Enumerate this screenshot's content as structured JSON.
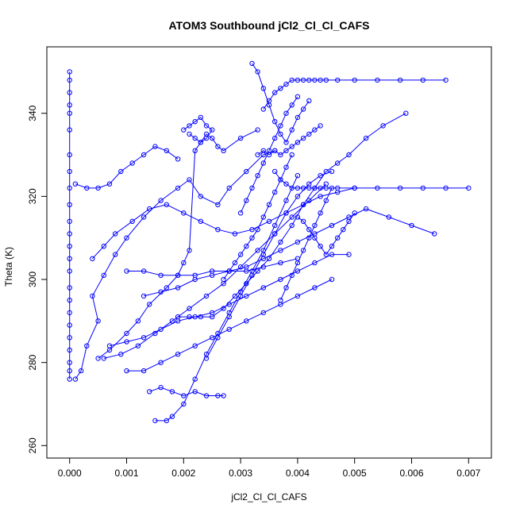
{
  "chart_data": {
    "type": "scatter",
    "title": "ATOM3 Southbound jCl2_Cl_Cl_CAFS",
    "xlabel": "jCl2_Cl_Cl_CAFS",
    "ylabel": "Theta (K)",
    "xlim": [
      -0.0004,
      0.0074
    ],
    "ylim": [
      257,
      356
    ],
    "x_ticks": [
      {
        "value": 0.0,
        "label": "0.000"
      },
      {
        "value": 0.001,
        "label": "0.001"
      },
      {
        "value": 0.002,
        "label": "0.002"
      },
      {
        "value": 0.003,
        "label": "0.003"
      },
      {
        "value": 0.004,
        "label": "0.004"
      },
      {
        "value": 0.005,
        "label": "0.005"
      },
      {
        "value": 0.006,
        "label": "0.006"
      },
      {
        "value": 0.007,
        "label": "0.007"
      }
    ],
    "y_ticks": [
      {
        "value": 260,
        "label": "260"
      },
      {
        "value": 280,
        "label": "280"
      },
      {
        "value": 300,
        "label": "300"
      },
      {
        "value": 320,
        "label": "320"
      },
      {
        "value": 340,
        "label": "340"
      }
    ],
    "grid": false,
    "series_color": "#0000ff",
    "marker": "open-circle",
    "connected": true,
    "series": [
      {
        "x": [
          0.0,
          0.0,
          0.0,
          0.0,
          0.0,
          0.0,
          0.0,
          0.0,
          0.0,
          0.0,
          0.0,
          0.0,
          0.0,
          0.0,
          0.0,
          0.0,
          0.0,
          0.0,
          0.0,
          0.0,
          0.0,
          0.0,
          0.0,
          0.0
        ],
        "y": [
          350,
          348,
          345,
          342,
          340,
          336,
          330,
          326,
          322,
          318,
          314,
          311,
          308,
          305,
          302,
          298,
          295,
          292,
          289,
          286,
          283,
          280,
          278,
          276
        ]
      },
      {
        "x": [
          0.0001,
          0.0002,
          0.0003,
          0.0005,
          0.0004,
          0.0006,
          0.0008,
          0.001,
          0.0013,
          0.0016,
          0.0019,
          0.0021,
          0.0023,
          0.0026,
          0.0028,
          0.0031,
          0.0034,
          0.0036
        ],
        "y": [
          276,
          278,
          284,
          290,
          296,
          301,
          306,
          310,
          315,
          319,
          322,
          324,
          320,
          318,
          322,
          326,
          330,
          331
        ]
      },
      {
        "x": [
          0.0005,
          0.0007,
          0.001,
          0.0012,
          0.0014,
          0.0017,
          0.0019,
          0.002,
          0.0021,
          0.0022,
          0.0023,
          0.0024,
          0.0025,
          0.0026,
          0.0027,
          0.003,
          0.0033
        ],
        "y": [
          281,
          283,
          287,
          290,
          294,
          298,
          301,
          304,
          307,
          331,
          333,
          335,
          334,
          332,
          331,
          334,
          336
        ]
      },
      {
        "x": [
          0.002,
          0.0021,
          0.0022,
          0.0023,
          0.0024,
          0.0025,
          0.0024,
          0.0023,
          0.0022,
          0.0021
        ],
        "y": [
          336,
          337,
          338,
          339,
          337,
          336,
          334,
          333,
          334,
          335
        ]
      },
      {
        "x": [
          0.0034,
          0.0035,
          0.0036,
          0.0037,
          0.0038,
          0.0039,
          0.004,
          0.0041,
          0.0042,
          0.0043,
          0.0044,
          0.0045,
          0.0047,
          0.005,
          0.0054,
          0.0058,
          0.0062,
          0.0066
        ],
        "y": [
          341,
          343,
          345,
          346,
          347,
          348,
          348,
          348,
          348,
          348,
          348,
          348,
          348,
          348,
          348,
          348,
          348,
          348
        ]
      },
      {
        "x": [
          0.0036,
          0.0037,
          0.0038,
          0.0039,
          0.004,
          0.0041,
          0.0042,
          0.0043,
          0.0044,
          0.0045,
          0.0047,
          0.005,
          0.0054,
          0.0058,
          0.0062,
          0.0066,
          0.007
        ],
        "y": [
          326,
          324,
          323,
          322,
          322,
          322,
          322,
          322,
          322,
          322,
          322,
          322,
          322,
          322,
          322,
          322,
          322
        ]
      },
      {
        "x": [
          0.0032,
          0.0033,
          0.0034,
          0.0035,
          0.0036,
          0.0037,
          0.0038,
          0.0039,
          0.004,
          0.0041,
          0.0042
        ],
        "y": [
          352,
          350,
          346,
          342,
          338,
          335,
          333,
          336,
          339,
          341,
          343
        ]
      },
      {
        "x": [
          0.0015,
          0.0017,
          0.0018,
          0.002,
          0.0022,
          0.0024,
          0.0026,
          0.0028,
          0.003,
          0.0032,
          0.0034,
          0.0036,
          0.0038,
          0.004
        ],
        "y": [
          266,
          266,
          267,
          270,
          276,
          282,
          287,
          292,
          297,
          302,
          307,
          313,
          319,
          325
        ]
      },
      {
        "x": [
          0.0014,
          0.0016,
          0.0018,
          0.002,
          0.0022,
          0.0024,
          0.0026,
          0.0027
        ],
        "y": [
          273,
          274,
          273,
          272,
          273,
          272,
          272,
          272
        ]
      },
      {
        "x": [
          0.001,
          0.0013,
          0.0016,
          0.0019,
          0.0022,
          0.0025,
          0.0028,
          0.0031,
          0.0034,
          0.0037,
          0.004,
          0.0043,
          0.0046
        ],
        "y": [
          278,
          278,
          280,
          282,
          284,
          286,
          288,
          290,
          292,
          294,
          296,
          298,
          300
        ]
      },
      {
        "x": [
          0.0007,
          0.001,
          0.0013,
          0.0016,
          0.0019,
          0.0022,
          0.0025,
          0.0028,
          0.0031,
          0.0034,
          0.0037,
          0.004,
          0.0043,
          0.0046,
          0.0049
        ],
        "y": [
          284,
          285,
          286,
          288,
          290,
          291,
          292,
          294,
          296,
          298,
          300,
          302,
          304,
          306,
          306
        ]
      },
      {
        "x": [
          0.001,
          0.0013,
          0.0016,
          0.0019,
          0.0022,
          0.0025,
          0.0028,
          0.0031,
          0.0034,
          0.0037,
          0.004
        ],
        "y": [
          302,
          302,
          301,
          301,
          301,
          302,
          302,
          302,
          303,
          304,
          305
        ]
      },
      {
        "x": [
          0.0013,
          0.0016,
          0.0019,
          0.0022,
          0.0025,
          0.0028,
          0.0031,
          0.0034,
          0.0037,
          0.004,
          0.0043,
          0.0046,
          0.0049,
          0.0052,
          0.0056,
          0.006,
          0.0064
        ],
        "y": [
          296,
          297,
          298,
          300,
          301,
          302,
          303,
          305,
          307,
          309,
          311,
          313,
          315,
          317,
          315,
          313,
          311
        ]
      },
      {
        "x": [
          0.0004,
          0.0006,
          0.0008,
          0.0011,
          0.0014,
          0.0017,
          0.002,
          0.0023,
          0.0026,
          0.0029,
          0.0032,
          0.0035,
          0.0038,
          0.0041,
          0.0044,
          0.0047,
          0.005
        ],
        "y": [
          305,
          308,
          311,
          314,
          317,
          318,
          316,
          314,
          312,
          311,
          312,
          314,
          316,
          318,
          320,
          321,
          322
        ]
      },
      {
        "x": [
          0.0001,
          0.0003,
          0.0005,
          0.0007,
          0.0009,
          0.0011,
          0.0013,
          0.0015,
          0.0017,
          0.0019
        ],
        "y": [
          323,
          322,
          322,
          323,
          326,
          328,
          330,
          332,
          331,
          329
        ]
      },
      {
        "x": [
          0.0019,
          0.0021,
          0.0023,
          0.0025,
          0.0027,
          0.0029,
          0.0031,
          0.0033,
          0.0035,
          0.0037,
          0.0039,
          0.0041,
          0.0043,
          0.0045,
          0.0047,
          0.0049,
          0.0052,
          0.0055,
          0.0059
        ],
        "y": [
          291,
          291,
          291,
          291,
          293,
          296,
          299,
          302,
          305,
          309,
          313,
          318,
          322,
          326,
          328,
          330,
          334,
          337,
          340
        ]
      },
      {
        "x": [
          0.0024,
          0.0026,
          0.0028,
          0.003,
          0.0032,
          0.0034,
          0.0036,
          0.0038,
          0.004,
          0.0042,
          0.0044,
          0.0046
        ],
        "y": [
          281,
          286,
          291,
          296,
          301,
          306,
          311,
          316,
          320,
          323,
          325,
          326
        ]
      },
      {
        "x": [
          0.0006,
          0.0009,
          0.0012,
          0.0015,
          0.0018,
          0.0021,
          0.0024,
          0.0027,
          0.003,
          0.0033,
          0.0036,
          0.0039,
          0.0042,
          0.0045
        ],
        "y": [
          281,
          282,
          284,
          287,
          290,
          293,
          296,
          299,
          303,
          307,
          311,
          315,
          319,
          323
        ]
      },
      {
        "x": [
          0.0033,
          0.0034,
          0.0035,
          0.0036,
          0.0037,
          0.0038,
          0.0039,
          0.004,
          0.0041,
          0.0042,
          0.0043,
          0.0044
        ],
        "y": [
          330,
          331,
          330,
          331,
          330,
          331,
          332,
          333,
          334,
          335,
          336,
          337
        ]
      },
      {
        "x": [
          0.003,
          0.0031,
          0.0032,
          0.0033,
          0.0034,
          0.0035,
          0.0036,
          0.0037,
          0.0038,
          0.0039,
          0.004
        ],
        "y": [
          316,
          319,
          322,
          325,
          328,
          331,
          334,
          337,
          340,
          342,
          344
        ]
      },
      {
        "x": [
          0.0027,
          0.0028,
          0.0029,
          0.003,
          0.0031,
          0.0032,
          0.0033,
          0.0034,
          0.0035,
          0.0036,
          0.0037,
          0.0038,
          0.0039
        ],
        "y": [
          300,
          302,
          304,
          306,
          308,
          310,
          312,
          315,
          318,
          321,
          324,
          327,
          330
        ]
      },
      {
        "x": [
          0.004,
          0.0041,
          0.0042,
          0.0043,
          0.0044,
          0.0045,
          0.0046,
          0.0047,
          0.0048,
          0.0049,
          0.005
        ],
        "y": [
          315,
          314,
          312,
          310,
          308,
          306,
          308,
          310,
          312,
          314,
          316
        ]
      },
      {
        "x": [
          0.0037,
          0.0038,
          0.0039,
          0.004,
          0.0041,
          0.0042,
          0.0043,
          0.0044,
          0.0045,
          0.0046
        ],
        "y": [
          295,
          298,
          301,
          304,
          307,
          310,
          313,
          316,
          319,
          322
        ]
      }
    ]
  }
}
